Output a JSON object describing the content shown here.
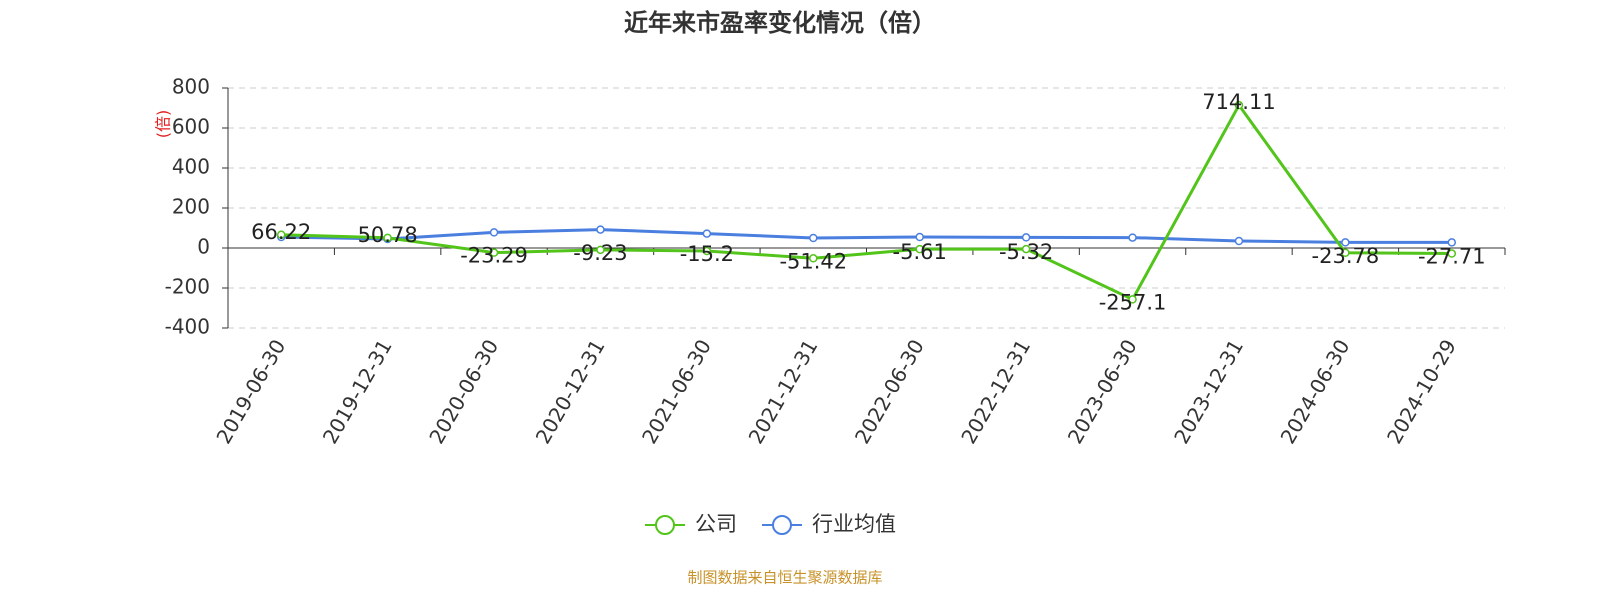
{
  "chart_data": {
    "type": "line",
    "title": "近年来市盈率变化情况（倍）",
    "y_label": "(倍)",
    "source": "制图数据来自恒生聚源数据库",
    "categories": [
      "2019-06-30",
      "2019-12-31",
      "2020-06-30",
      "2020-12-31",
      "2021-06-30",
      "2021-12-31",
      "2022-06-30",
      "2022-12-31",
      "2023-06-30",
      "2023-12-31",
      "2024-06-30",
      "2024-10-29"
    ],
    "series": [
      {
        "name": "公司",
        "color": "#52c41a",
        "values": [
          66.22,
          50.78,
          -23.29,
          -9.23,
          -15.2,
          -51.42,
          -5.61,
          -5.32,
          -257.1,
          714.11,
          -23.78,
          -27.71
        ],
        "labels": true
      },
      {
        "name": "行业均值",
        "color": "#4a7fe0",
        "values": [
          55,
          45,
          78,
          92,
          72,
          50,
          55,
          53,
          52,
          35,
          28,
          28
        ],
        "labels": false
      }
    ],
    "ylim": [
      -400,
      800
    ],
    "yticks": [
      -400,
      -200,
      0,
      200,
      400,
      600,
      800
    ],
    "grid": true,
    "legend": "bottom"
  }
}
